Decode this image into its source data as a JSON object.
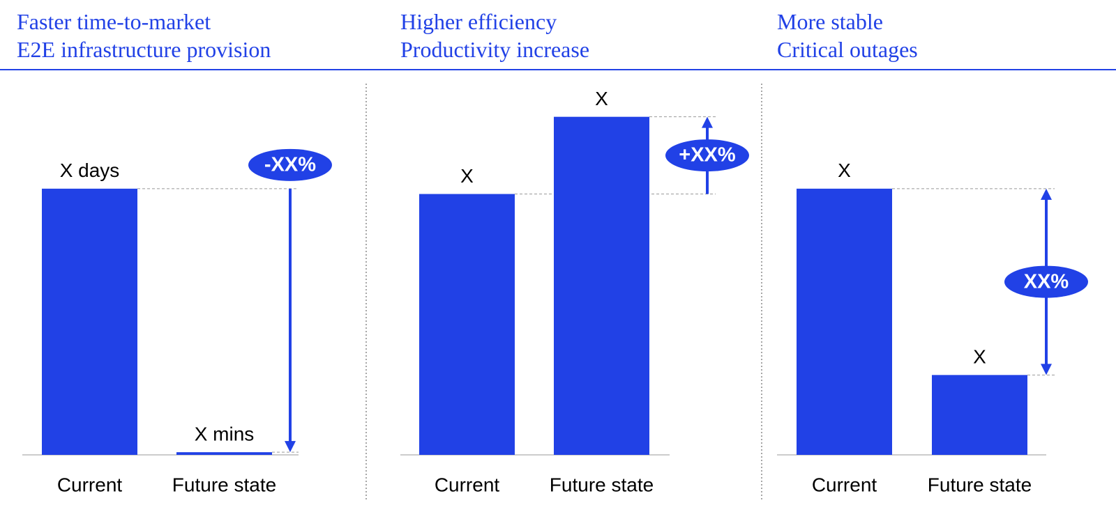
{
  "chart_data": [
    {
      "type": "bar",
      "title": "Faster time-to-market",
      "subtitle": "E2E infrastructure provision",
      "categories": [
        "Current",
        "Future state"
      ],
      "values": [
        100,
        1
      ],
      "value_labels": [
        "X days",
        "X mins"
      ],
      "annotation": "-XX%",
      "color": "#2141e6",
      "ylim": [
        0,
        140
      ]
    },
    {
      "type": "bar",
      "title": "Higher efficiency",
      "subtitle": "Productivity increase",
      "categories": [
        "Current",
        "Future state"
      ],
      "values": [
        98,
        127
      ],
      "value_labels": [
        "X",
        "X"
      ],
      "annotation": "+XX%",
      "color": "#2141e6",
      "ylim": [
        0,
        140
      ]
    },
    {
      "type": "bar",
      "title": "More stable",
      "subtitle": "Critical outages",
      "categories": [
        "Current",
        "Future state"
      ],
      "values": [
        100,
        30
      ],
      "value_labels": [
        "X",
        "X"
      ],
      "annotation": "XX%",
      "color": "#2141e6",
      "ylim": [
        0,
        140
      ]
    }
  ]
}
